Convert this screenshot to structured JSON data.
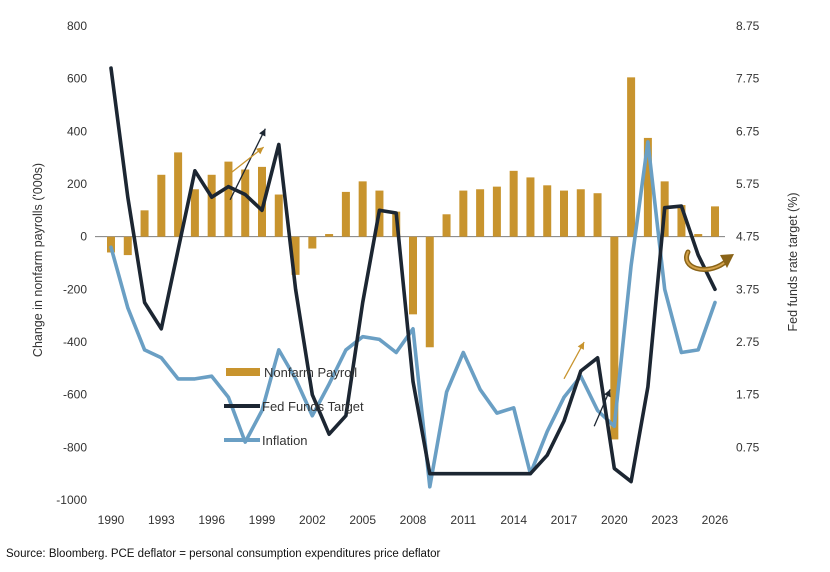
{
  "source_note": "Source: Bloomberg. PCE deflator = personal consumption expenditures price deflator",
  "colors": {
    "payroll": "#C8942E",
    "fed": "#1C2632",
    "inflation": "#6A9FC4",
    "arrow_up": "#C8942E",
    "arrow_dark": "#1C2632",
    "curved_arrow": "#8A6418"
  },
  "chart_data": {
    "type": "bar",
    "ylabel": "Change in nonfarm payrolls ('000s)",
    "y2label": "Fed funds rate target (%)",
    "ylim": [
      -1000,
      800
    ],
    "y_ticks": [
      "800",
      "600",
      "400",
      "200",
      "0",
      "-200",
      "-400",
      "-600",
      "-800",
      "-1000"
    ],
    "y2lim": [
      -0.25,
      8.75
    ],
    "y2_ticks": [
      "8.75",
      "7.75",
      "6.75",
      "5.75",
      "4.75",
      "3.75",
      "2.75",
      "1.75",
      "0.75"
    ],
    "x_ticks": [
      "1990",
      "1993",
      "1996",
      "1999",
      "2002",
      "2005",
      "2008",
      "2011",
      "2014",
      "2017",
      "2020",
      "2023",
      "2026"
    ],
    "x": [
      1990,
      1991,
      1992,
      1993,
      1994,
      1995,
      1996,
      1997,
      1998,
      1999,
      2000,
      2001,
      2002,
      2003,
      2004,
      2005,
      2006,
      2007,
      2008,
      2009,
      2010,
      2011,
      2012,
      2013,
      2014,
      2015,
      2016,
      2017,
      2018,
      2019,
      2020,
      2021,
      2022,
      2023,
      2024,
      2025,
      2026
    ],
    "legend": [
      "Nonfarm Payroll",
      "Fed Funds Target",
      "Inflation"
    ],
    "legend_position": "lower-left",
    "series": [
      {
        "name": "Nonfarm Payroll",
        "type": "bar",
        "axis": "left",
        "values": [
          -60,
          -70,
          100,
          235,
          320,
          180,
          235,
          285,
          255,
          265,
          160,
          -145,
          -45,
          10,
          170,
          210,
          175,
          95,
          -295,
          -420,
          85,
          175,
          180,
          190,
          250,
          225,
          195,
          175,
          180,
          165,
          -770,
          605,
          375,
          210,
          120,
          10,
          115
        ]
      },
      {
        "name": "Fed Funds Target",
        "type": "line",
        "axis": "right",
        "values": [
          7.95,
          5.5,
          3.5,
          3.0,
          4.5,
          6.0,
          5.5,
          5.7,
          5.55,
          5.25,
          6.5,
          3.75,
          1.75,
          1.0,
          1.35,
          3.5,
          5.25,
          5.2,
          2.0,
          0.25,
          0.25,
          0.25,
          0.25,
          0.25,
          0.25,
          0.25,
          0.6,
          1.25,
          2.2,
          2.45,
          0.35,
          0.1,
          1.9,
          5.3,
          5.33,
          4.4,
          3.75
        ]
      },
      {
        "name": "Inflation",
        "type": "line",
        "axis": "right",
        "values": [
          4.55,
          3.4,
          2.6,
          2.45,
          2.05,
          2.05,
          2.1,
          1.7,
          0.85,
          1.45,
          2.6,
          2.05,
          1.35,
          1.95,
          2.6,
          2.85,
          2.8,
          2.55,
          3.0,
          0.0,
          1.8,
          2.55,
          1.85,
          1.4,
          1.5,
          0.25,
          1.05,
          1.7,
          2.1,
          1.45,
          1.15,
          4.2,
          6.55,
          3.75,
          2.55,
          2.6,
          3.5
        ]
      }
    ],
    "annotations": [
      {
        "type": "arrow",
        "color": "dark",
        "from_data": [
          1997.1,
          5.45
        ],
        "to_data": [
          1999.2,
          6.8
        ]
      },
      {
        "type": "arrow",
        "color": "gold",
        "from_data": [
          1997.1,
          240
        ],
        "to_data": [
          1999.1,
          340
        ]
      },
      {
        "type": "arrow",
        "color": "gold",
        "from_data": [
          2017.0,
          2.05
        ],
        "to_data": [
          2018.2,
          2.75
        ]
      },
      {
        "type": "arrow",
        "color": "dark",
        "from_data": [
          2018.8,
          1.15
        ],
        "to_data": [
          2019.75,
          1.85
        ]
      }
    ]
  }
}
